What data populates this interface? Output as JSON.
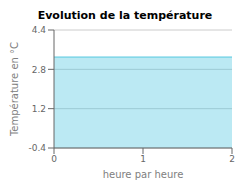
{
  "chart_data": {
    "type": "area",
    "title": "Evolution de la température",
    "xlabel": "heure par heure",
    "ylabel": "Température en °C",
    "x": [
      0,
      2
    ],
    "values": [
      3.3,
      3.3
    ],
    "color": "#55c8e0",
    "xlim": [
      0,
      2
    ],
    "ylim": [
      -0.4,
      4.4
    ],
    "xticks": [
      0,
      1,
      2
    ],
    "yticks": [
      -0.4,
      1.2,
      2.8,
      4.4
    ],
    "grid": true
  }
}
